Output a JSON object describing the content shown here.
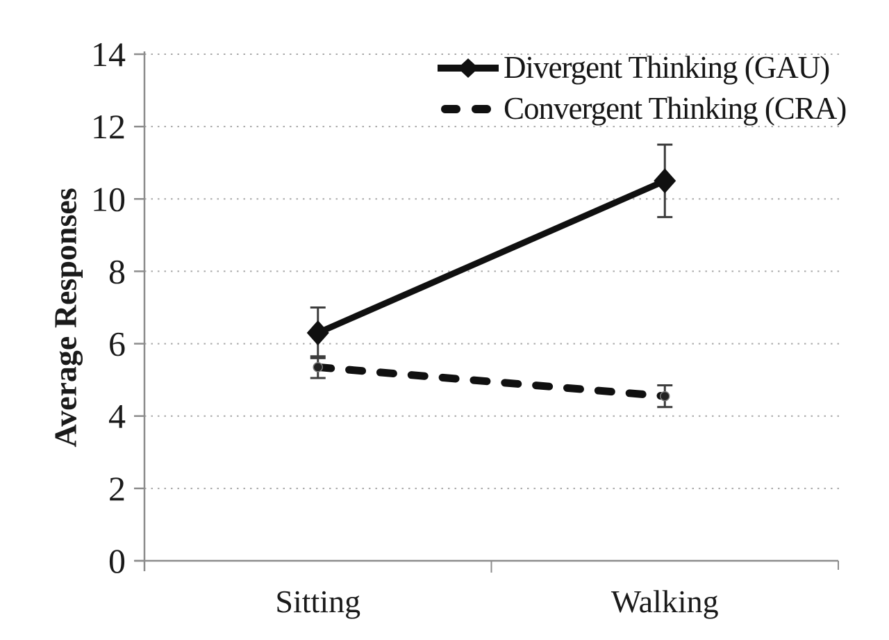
{
  "figure": {
    "background": "#ffffff"
  },
  "chart_data": {
    "type": "line",
    "title": "",
    "categories": [
      "Sitting",
      "Walking"
    ],
    "series": [
      {
        "key": "divergent-gau",
        "name": "Divergent Thinking (GAU)",
        "values": [
          6.3,
          10.5
        ],
        "errors": [
          0.7,
          1.0
        ],
        "line_style": "solid",
        "marker": "diamond"
      },
      {
        "key": "convergent-cra",
        "name": "Convergent Thinking (CRA)",
        "values": [
          5.35,
          4.55
        ],
        "errors": [
          0.3,
          0.3
        ],
        "line_style": "dashed",
        "marker": "dot"
      }
    ],
    "xlabel": "",
    "ylabel": "Average Responses",
    "ylim": [
      0,
      14
    ],
    "yticks": [
      0,
      2,
      4,
      6,
      8,
      10,
      12,
      14
    ],
    "grid": {
      "horizontal": true,
      "style": "dotted"
    },
    "legend": {
      "position": "top-right"
    },
    "colors": {
      "series": "#101010",
      "grid": "#a8a8a8",
      "axis": "#8c8c8c",
      "error_bar": "#3d3d3d",
      "text": "#1a1a1a"
    }
  }
}
